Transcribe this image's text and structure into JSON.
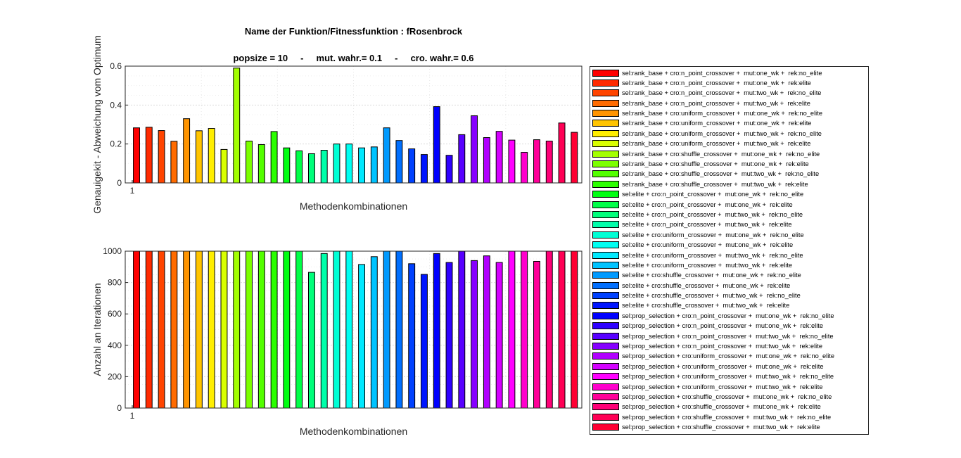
{
  "title": {
    "line1": "Name der Funktion/Fitnessfunktion : fRosenbrock",
    "line2": "popsize = 10     -     mut. wahr.= 0.1     -     cro. wahr.= 0.6"
  },
  "legend": [
    "sel:rank_base + cro:n_point_crossover +  mut:one_wk +  rek:no_elite",
    "sel:rank_base + cro:n_point_crossover +  mut:one_wk +  rek:elite",
    "sel:rank_base + cro:n_point_crossover +  mut:two_wk +  rek:no_elite",
    "sel:rank_base + cro:n_point_crossover +  mut:two_wk +  rek:elite",
    "sel:rank_base + cro:uniform_crossover +  mut:one_wk +  rek:no_elite",
    "sel:rank_base + cro:uniform_crossover +  mut:one_wk +  rek:elite",
    "sel:rank_base + cro:uniform_crossover +  mut:two_wk +  rek:no_elite",
    "sel:rank_base + cro:uniform_crossover +  mut:two_wk +  rek:elite",
    "sel:rank_base + cro:shuffle_crossover +  mut:one_wk +  rek:no_elite",
    "sel:rank_base + cro:shuffle_crossover +  mut:one_wk +  rek:elite",
    "sel:rank_base + cro:shuffle_crossover +  mut:two_wk +  rek:no_elite",
    "sel:rank_base + cro:shuffle_crossover +  mut:two_wk +  rek:elite",
    "sel:elite + cro:n_point_crossover +  mut:one_wk +  rek:no_elite",
    "sel:elite + cro:n_point_crossover +  mut:one_wk +  rek:elite",
    "sel:elite + cro:n_point_crossover +  mut:two_wk +  rek:no_elite",
    "sel:elite + cro:n_point_crossover +  mut:two_wk +  rek:elite",
    "sel:elite + cro:uniform_crossover +  mut:one_wk +  rek:no_elite",
    "sel:elite + cro:uniform_crossover +  mut:one_wk +  rek:elite",
    "sel:elite + cro:uniform_crossover +  mut:two_wk +  rek:no_elite",
    "sel:elite + cro:uniform_crossover +  mut:two_wk +  rek:elite",
    "sel:elite + cro:shuffle_crossover +  mut:one_wk +  rek:no_elite",
    "sel:elite + cro:shuffle_crossover +  mut:one_wk +  rek:elite",
    "sel:elite + cro:shuffle_crossover +  mut:two_wk +  rek:no_elite",
    "sel:elite + cro:shuffle_crossover +  mut:two_wk +  rek:elite",
    "sel:prop_selection + cro:n_point_crossover +  mut:one_wk +  rek:no_elite",
    "sel:prop_selection + cro:n_point_crossover +  mut:one_wk +  rek:elite",
    "sel:prop_selection + cro:n_point_crossover +  mut:two_wk +  rek:no_elite",
    "sel:prop_selection + cro:n_point_crossover +  mut:two_wk +  rek:elite",
    "sel:prop_selection + cro:uniform_crossover +  mut:one_wk +  rek:no_elite",
    "sel:prop_selection + cro:uniform_crossover +  mut:one_wk +  rek:elite",
    "sel:prop_selection + cro:uniform_crossover +  mut:two_wk +  rek:no_elite",
    "sel:prop_selection + cro:uniform_crossover +  mut:two_wk +  rek:elite",
    "sel:prop_selection + cro:shuffle_crossover +  mut:one_wk +  rek:no_elite",
    "sel:prop_selection + cro:shuffle_crossover +  mut:one_wk +  rek:elite",
    "sel:prop_selection + cro:shuffle_crossover +  mut:two_wk +  rek:no_elite",
    "sel:prop_selection + cro:shuffle_crossover +  mut:two_wk +  rek:elite"
  ],
  "colors": [
    "#ff0000",
    "#ff2a00",
    "#ff4400",
    "#ff6b00",
    "#ff9400",
    "#ffc400",
    "#ffee00",
    "#d9ff00",
    "#a3ff00",
    "#7cff00",
    "#53ff00",
    "#2bff00",
    "#00ff11",
    "#00ff48",
    "#00ff7a",
    "#00ffaa",
    "#00ffd5",
    "#00fff2",
    "#00e9ff",
    "#00c3ff",
    "#009aff",
    "#006fff",
    "#0041ff",
    "#0015ff",
    "#0000ff",
    "#2e00ff",
    "#5800ff",
    "#8600ff",
    "#b100ff",
    "#d400ff",
    "#ff00ff",
    "#ff00cc",
    "#ff0099",
    "#ff0077",
    "#ff0055",
    "#ff0033"
  ],
  "chart_data": [
    {
      "type": "bar",
      "xlabel": "Methodenkombinationen",
      "ylabel": "Genauigekit - Abweichung vom Optimum",
      "ylim": [
        0,
        0.6
      ],
      "yticks": [
        "0",
        "0.2",
        "0.4",
        "0.6"
      ],
      "xticks": [
        "1"
      ],
      "grid": true,
      "values": [
        0.283,
        0.286,
        0.269,
        0.214,
        0.33,
        0.268,
        0.28,
        0.172,
        0.59,
        0.215,
        0.197,
        0.264,
        0.18,
        0.165,
        0.15,
        0.168,
        0.2,
        0.2,
        0.18,
        0.185,
        0.283,
        0.218,
        0.175,
        0.146,
        0.392,
        0.142,
        0.248,
        0.345,
        0.233,
        0.265,
        0.22,
        0.157,
        0.222,
        0.215,
        0.308,
        0.26
      ]
    },
    {
      "type": "bar",
      "xlabel": "Methodenkombinationen",
      "ylabel": "Anzahl an Iterationen",
      "ylim": [
        0,
        1000
      ],
      "yticks": [
        "0",
        "200",
        "400",
        "600",
        "800",
        "1000"
      ],
      "xticks": [
        "1"
      ],
      "grid": true,
      "values": [
        1000,
        1000,
        1000,
        1000,
        1000,
        1000,
        1000,
        1000,
        1000,
        1000,
        1000,
        1000,
        1000,
        1000,
        865,
        985,
        1000,
        1000,
        915,
        965,
        1000,
        1000,
        920,
        852,
        985,
        928,
        1000,
        940,
        970,
        928,
        1000,
        1000,
        935,
        1000,
        1000,
        1000
      ]
    }
  ]
}
